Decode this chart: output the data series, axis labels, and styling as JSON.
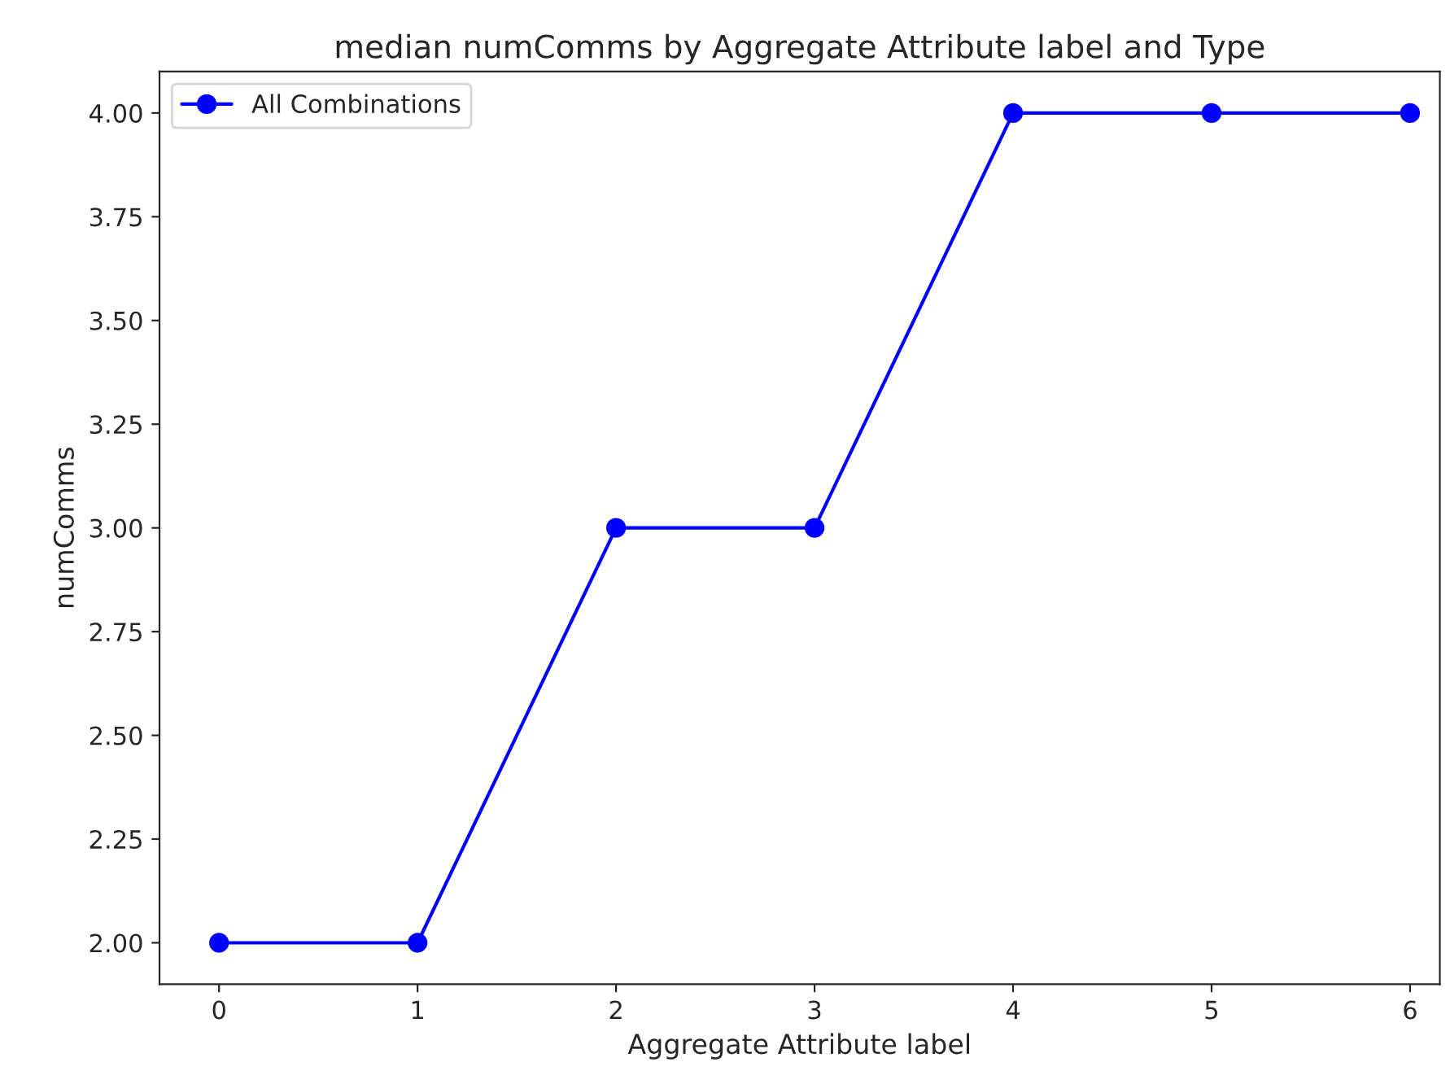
{
  "chart_data": {
    "type": "line",
    "title": "median numComms by Aggregate Attribute label and Type",
    "xlabel": "Aggregate Attribute label",
    "ylabel": "numComms",
    "x": [
      0,
      1,
      2,
      3,
      4,
      5,
      6
    ],
    "series": [
      {
        "name": "All Combinations",
        "color": "#0000ff",
        "values": [
          2,
          2,
          3,
          3,
          4,
          4,
          4
        ]
      }
    ],
    "xlim": [
      -0.3,
      6.15
    ],
    "xticks": [
      0,
      1,
      2,
      3,
      4,
      5,
      6
    ],
    "ylim": [
      1.9,
      4.1
    ],
    "yticks": [
      {
        "value": 2,
        "label": "2.00"
      },
      {
        "value": 2.25,
        "label": "2.25"
      },
      {
        "value": 2.5,
        "label": "2.50"
      },
      {
        "value": 2.75,
        "label": "2.75"
      },
      {
        "value": 3,
        "label": "3.00"
      },
      {
        "value": 3.25,
        "label": "3.25"
      },
      {
        "value": 3.5,
        "label": "3.50"
      },
      {
        "value": 3.75,
        "label": "3.75"
      },
      {
        "value": 4,
        "label": "4.00"
      }
    ],
    "marker": "circle",
    "line_style": "solid",
    "legend": "top left",
    "grid": false
  }
}
